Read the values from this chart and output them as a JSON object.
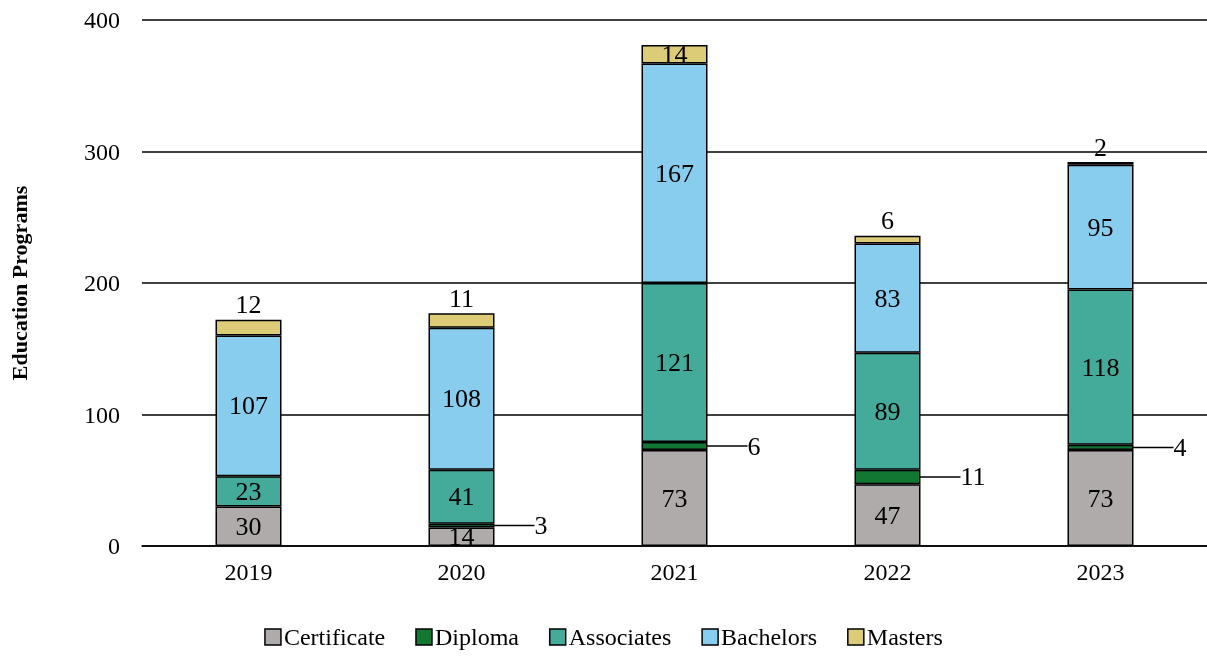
{
  "chart_data": {
    "type": "bar",
    "ylabel": "Education Programs",
    "categories": [
      "2019",
      "2020",
      "2021",
      "2022",
      "2023"
    ],
    "series": [
      {
        "name": "Certificate",
        "color": "#afabab",
        "values": [
          30,
          14,
          73,
          47,
          73
        ]
      },
      {
        "name": "Diploma",
        "color": "#117733",
        "values": [
          null,
          3,
          6,
          11,
          4
        ]
      },
      {
        "name": "Associates",
        "color": "#44aa99",
        "values": [
          23,
          41,
          121,
          89,
          118
        ]
      },
      {
        "name": "Bachelors",
        "color": "#88ccee",
        "values": [
          107,
          108,
          167,
          83,
          95
        ]
      },
      {
        "name": "Masters",
        "color": "#ddcc77",
        "values": [
          12,
          11,
          14,
          6,
          2
        ]
      }
    ],
    "stacked": true,
    "ylim": [
      0,
      400
    ],
    "yticks": [
      0,
      100,
      200,
      300,
      400
    ],
    "grid": "y",
    "legend": "bottom",
    "data_labels": true
  }
}
